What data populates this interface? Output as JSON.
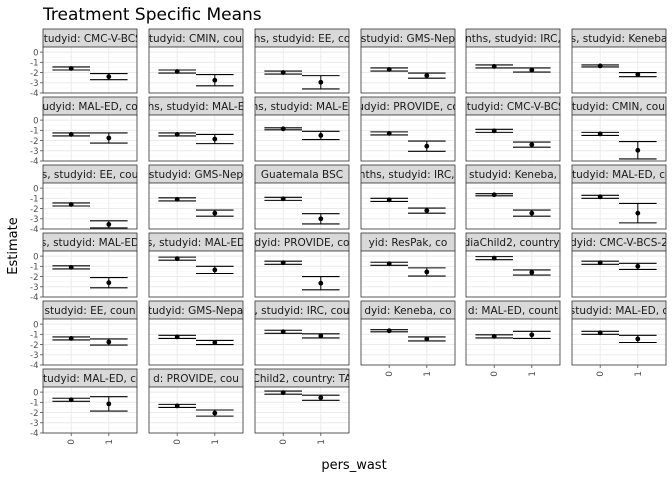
{
  "chart_data": {
    "type": "scatter",
    "subtype": "faceted point estimates with confidence intervals",
    "title": "Treatment Specific Means",
    "xlabel": "pers_wast",
    "ylabel": "Estimate",
    "categories": [
      "0",
      "1"
    ],
    "ylim": [
      -4,
      0.5
    ],
    "yticks": [
      0,
      -1,
      -2,
      -3,
      -4
    ],
    "grid": true,
    "theme": "bw",
    "colors": {
      "panel_border": "#333333",
      "strip_fill": "#d9d9d9",
      "grid_major": "#ebebeb",
      "grid_minor": "#f4f4f4",
      "point": "#000000",
      "text": "#000000",
      "axis_text": "#4d4d4d"
    },
    "panels": [
      {
        "label": "studyid: CMC-V-BCS",
        "points": [
          {
            "x": "0",
            "y": -1.6,
            "lo": -1.75,
            "hi": -1.45
          },
          {
            "x": "1",
            "y": -2.4,
            "lo": -2.7,
            "hi": -2.1
          }
        ]
      },
      {
        "label": "studyid: CMIN, coun",
        "points": [
          {
            "x": "0",
            "y": -1.9,
            "lo": -2.05,
            "hi": -1.75
          },
          {
            "x": "1",
            "y": -2.75,
            "lo": -3.3,
            "hi": -2.2
          }
        ]
      },
      {
        "label": "hs, studyid: EE, co",
        "points": [
          {
            "x": "0",
            "y": -2.0,
            "lo": -2.15,
            "hi": -1.85
          },
          {
            "x": "1",
            "y": -2.95,
            "lo": -3.6,
            "hi": -2.3
          }
        ]
      },
      {
        "label": "studyid: GMS-Nep",
        "points": [
          {
            "x": "0",
            "y": -1.7,
            "lo": -1.85,
            "hi": -1.55
          },
          {
            "x": "1",
            "y": -2.3,
            "lo": -2.55,
            "hi": -2.05
          }
        ]
      },
      {
        "label": "nths, studyid: IRC,",
        "points": [
          {
            "x": "0",
            "y": -1.4,
            "lo": -1.55,
            "hi": -1.25
          },
          {
            "x": "1",
            "y": -1.75,
            "lo": -1.95,
            "hi": -1.55
          }
        ]
      },
      {
        "label": "s, studyid: Keneba",
        "points": [
          {
            "x": "0",
            "y": -1.35,
            "lo": -1.45,
            "hi": -1.25
          },
          {
            "x": "1",
            "y": -2.2,
            "lo": -2.4,
            "hi": -2.0
          }
        ]
      },
      {
        "label": "udyid: MAL-ED, co",
        "points": [
          {
            "x": "0",
            "y": -1.4,
            "lo": -1.55,
            "hi": -1.25
          },
          {
            "x": "1",
            "y": -1.75,
            "lo": -2.25,
            "hi": -1.25
          }
        ]
      },
      {
        "label": "hs, studyid: MAL-E",
        "points": [
          {
            "x": "0",
            "y": -1.4,
            "lo": -1.55,
            "hi": -1.25
          },
          {
            "x": "1",
            "y": -1.85,
            "lo": -2.3,
            "hi": -1.4
          }
        ]
      },
      {
        "label": "ths, studyid: MAL-ED",
        "points": [
          {
            "x": "0",
            "y": -0.85,
            "lo": -0.95,
            "hi": -0.75
          },
          {
            "x": "1",
            "y": -1.5,
            "lo": -1.9,
            "hi": -1.1
          }
        ]
      },
      {
        "label": "udyid: PROVIDE, co",
        "points": [
          {
            "x": "0",
            "y": -1.3,
            "lo": -1.45,
            "hi": -1.15
          },
          {
            "x": "1",
            "y": -2.55,
            "lo": -3.05,
            "hi": -2.05
          }
        ]
      },
      {
        "label": "studyid: CMC-V-BCS",
        "points": [
          {
            "x": "0",
            "y": -1.05,
            "lo": -1.2,
            "hi": -0.9
          },
          {
            "x": "1",
            "y": -2.4,
            "lo": -2.65,
            "hi": -2.15
          }
        ]
      },
      {
        "label": "studyid: CMIN, coun",
        "points": [
          {
            "x": "0",
            "y": -1.35,
            "lo": -1.5,
            "hi": -1.2
          },
          {
            "x": "1",
            "y": -2.95,
            "lo": -3.8,
            "hi": -2.1
          }
        ]
      },
      {
        "label": "s, studyid: EE, cou",
        "points": [
          {
            "x": "0",
            "y": -1.6,
            "lo": -1.75,
            "hi": -1.45
          },
          {
            "x": "1",
            "y": -3.55,
            "lo": -3.9,
            "hi": -3.2
          }
        ]
      },
      {
        "label": "studyid: GMS-Nep",
        "points": [
          {
            "x": "0",
            "y": -1.1,
            "lo": -1.25,
            "hi": -0.95
          },
          {
            "x": "1",
            "y": -2.45,
            "lo": -2.75,
            "hi": -2.15
          }
        ]
      },
      {
        "label": "Guatemala BSC",
        "points": [
          {
            "x": "0",
            "y": -1.05,
            "lo": -1.2,
            "hi": -0.9
          },
          {
            "x": "1",
            "y": -3.0,
            "lo": -3.5,
            "hi": -2.5
          }
        ]
      },
      {
        "label": "onths, studyid: IRC, c",
        "points": [
          {
            "x": "0",
            "y": -1.15,
            "lo": -1.3,
            "hi": -1.0
          },
          {
            "x": "1",
            "y": -2.2,
            "lo": -2.45,
            "hi": -1.95
          }
        ]
      },
      {
        "label": "studyid: Keneba,",
        "points": [
          {
            "x": "0",
            "y": -0.65,
            "lo": -0.75,
            "hi": -0.55
          },
          {
            "x": "1",
            "y": -2.45,
            "lo": -2.75,
            "hi": -2.15
          }
        ]
      },
      {
        "label": "studyid: MAL-ED, co",
        "points": [
          {
            "x": "0",
            "y": -0.85,
            "lo": -1.0,
            "hi": -0.7
          },
          {
            "x": "1",
            "y": -2.45,
            "lo": -3.4,
            "hi": -1.5
          }
        ]
      },
      {
        "label": "s, studyid: MAL-ED",
        "points": [
          {
            "x": "0",
            "y": -1.1,
            "lo": -1.25,
            "hi": -0.95
          },
          {
            "x": "1",
            "y": -2.6,
            "lo": -3.1,
            "hi": -2.1
          }
        ]
      },
      {
        "label": "s, studyid: MAL-ED",
        "points": [
          {
            "x": "0",
            "y": -0.25,
            "lo": -0.4,
            "hi": -0.1
          },
          {
            "x": "1",
            "y": -1.35,
            "lo": -1.7,
            "hi": -1.0
          }
        ]
      },
      {
        "label": "dyid: PROVIDE, co",
        "points": [
          {
            "x": "0",
            "y": -0.65,
            "lo": -0.8,
            "hi": -0.5
          },
          {
            "x": "1",
            "y": -2.65,
            "lo": -3.3,
            "hi": -2.0
          }
        ]
      },
      {
        "label": "yid: ResPak, co",
        "points": [
          {
            "x": "0",
            "y": -0.75,
            "lo": -0.9,
            "hi": -0.6
          },
          {
            "x": "1",
            "y": -1.55,
            "lo": -1.95,
            "hi": -1.15
          }
        ]
      },
      {
        "label": "diaChild2, country:",
        "points": [
          {
            "x": "0",
            "y": -0.2,
            "lo": -0.35,
            "hi": -0.05
          },
          {
            "x": "1",
            "y": -1.6,
            "lo": -1.85,
            "hi": -1.35
          }
        ]
      },
      {
        "label": "udyid: CMC-V-BCS-20",
        "points": [
          {
            "x": "0",
            "y": -0.65,
            "lo": -0.8,
            "hi": -0.5
          },
          {
            "x": "1",
            "y": -1.0,
            "lo": -1.3,
            "hi": -0.7
          }
        ]
      },
      {
        "label": "studyid: EE, coun",
        "points": [
          {
            "x": "0",
            "y": -1.4,
            "lo": -1.55,
            "hi": -1.25
          },
          {
            "x": "1",
            "y": -1.75,
            "lo": -2.05,
            "hi": -1.45
          }
        ]
      },
      {
        "label": "studyid: GMS-Nepal,",
        "points": [
          {
            "x": "0",
            "y": -1.25,
            "lo": -1.4,
            "hi": -1.1
          },
          {
            "x": "1",
            "y": -1.8,
            "lo": -2.0,
            "hi": -1.6
          }
        ]
      },
      {
        "label": "h, studyid: IRC, coun",
        "points": [
          {
            "x": "0",
            "y": -0.75,
            "lo": -0.9,
            "hi": -0.6
          },
          {
            "x": "1",
            "y": -1.15,
            "lo": -1.35,
            "hi": -0.95
          }
        ]
      },
      {
        "label": "dyid: Keneba, co",
        "points": [
          {
            "x": "0",
            "y": -0.65,
            "lo": -0.75,
            "hi": -0.55
          },
          {
            "x": "1",
            "y": -1.45,
            "lo": -1.65,
            "hi": -1.25
          }
        ]
      },
      {
        "label": "d: MAL-ED, count",
        "points": [
          {
            "x": "0",
            "y": -1.2,
            "lo": -1.35,
            "hi": -1.05
          },
          {
            "x": "1",
            "y": -1.05,
            "lo": -1.4,
            "hi": -0.7
          }
        ]
      },
      {
        "label": "studyid: MAL-ED, c",
        "points": [
          {
            "x": "0",
            "y": -0.85,
            "lo": -1.0,
            "hi": -0.7
          },
          {
            "x": "1",
            "y": -1.45,
            "lo": -1.8,
            "hi": -1.1
          }
        ]
      },
      {
        "label": "studyid: MAL-ED, co",
        "points": [
          {
            "x": "0",
            "y": -0.75,
            "lo": -0.9,
            "hi": -0.6
          },
          {
            "x": "1",
            "y": -1.15,
            "lo": -1.85,
            "hi": -0.45
          }
        ]
      },
      {
        "label": "d: PROVIDE, cou",
        "points": [
          {
            "x": "0",
            "y": -1.35,
            "lo": -1.5,
            "hi": -1.2
          },
          {
            "x": "1",
            "y": -2.05,
            "lo": -2.35,
            "hi": -1.75
          }
        ]
      },
      {
        "label": "Child2, country: TA",
        "points": [
          {
            "x": "0",
            "y": -0.05,
            "lo": -0.2,
            "hi": 0.1
          },
          {
            "x": "1",
            "y": -0.55,
            "lo": -0.8,
            "hi": -0.3
          }
        ]
      }
    ]
  }
}
